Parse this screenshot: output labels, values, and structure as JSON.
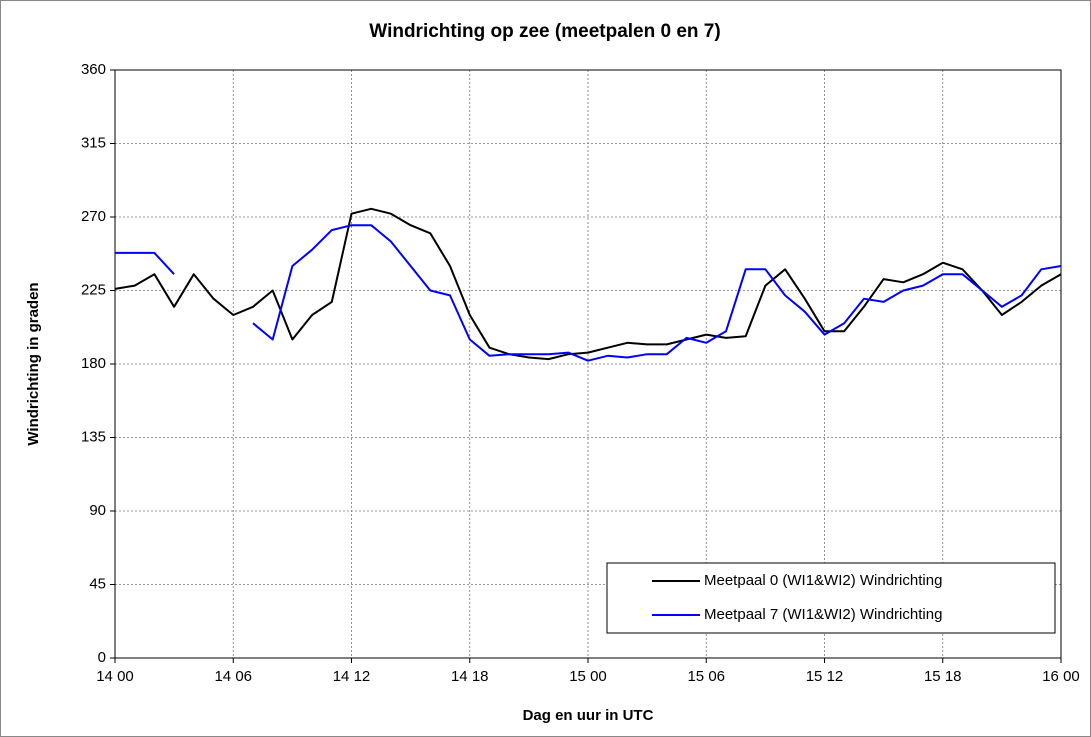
{
  "chart_data": {
    "type": "line",
    "title": "Windrichting op zee (meetpalen 0 en 7)",
    "x_label": "Dag en uur in UTC",
    "y_label": "Windrichting in graden",
    "categories": [
      "14 00",
      null,
      null,
      null,
      null,
      null,
      "14 06",
      null,
      null,
      null,
      null,
      null,
      "14 12",
      null,
      null,
      null,
      null,
      null,
      "14 18",
      null,
      null,
      null,
      null,
      null,
      "15 00",
      null,
      null,
      null,
      null,
      null,
      "15 06",
      null,
      null,
      null,
      null,
      null,
      "15 12",
      null,
      null,
      null,
      null,
      null,
      "15 18",
      null,
      null,
      null,
      null,
      null,
      "16 00"
    ],
    "series": [
      {
        "name": "Meetpaal 0 (WI1&WI2) Windrichting",
        "color": "#000000",
        "values": [
          226,
          228,
          235,
          215,
          235,
          220,
          210,
          215,
          225,
          195,
          210,
          218,
          272,
          275,
          272,
          265,
          260,
          240,
          210,
          190,
          186,
          184,
          183,
          186,
          187,
          190,
          193,
          192,
          192,
          195,
          198,
          196,
          197,
          228,
          238,
          220,
          200,
          200,
          215,
          232,
          230,
          235,
          242,
          238,
          225,
          210,
          218,
          228,
          235
        ]
      },
      {
        "name": "Meetpaal 7 (WI1&WI2) Windrichting",
        "color": "#0000ff",
        "values": [
          248,
          248,
          248,
          235,
          null,
          null,
          null,
          205,
          195,
          240,
          250,
          262,
          265,
          265,
          255,
          240,
          225,
          222,
          195,
          185,
          186,
          186,
          186,
          187,
          182,
          185,
          184,
          186,
          186,
          196,
          193,
          200,
          238,
          238,
          222,
          212,
          198,
          205,
          220,
          218,
          225,
          228,
          235,
          235,
          225,
          215,
          222,
          238,
          240
        ]
      }
    ],
    "ylim": [
      0,
      360
    ],
    "yticks": [
      0,
      45,
      90,
      135,
      180,
      225,
      270,
      315,
      360
    ],
    "grid": true,
    "legend": "lower right"
  }
}
